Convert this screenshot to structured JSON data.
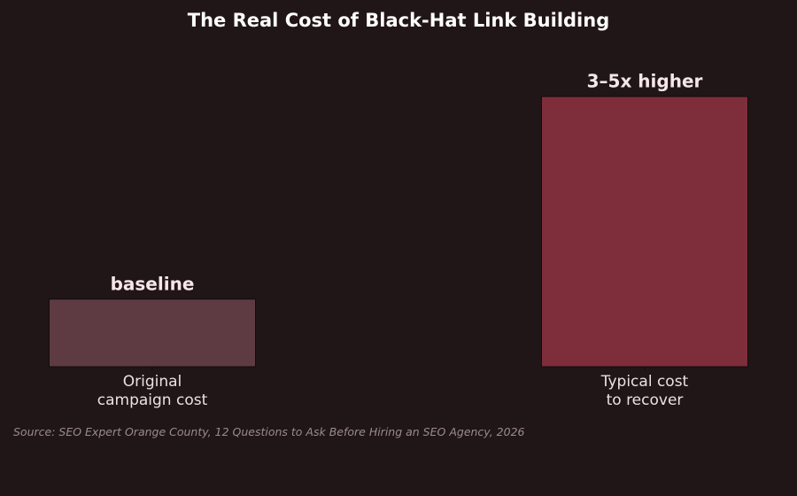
{
  "chart_data": {
    "type": "bar",
    "title": "The Real Cost of Black-Hat Link Building",
    "categories": [
      "Original\ncampaign cost",
      "Typical cost\nto recover"
    ],
    "values": [
      1,
      4
    ],
    "value_labels": [
      "baseline",
      "3–5x higher"
    ],
    "colors": [
      "#5e3b42",
      "#7d2e3a"
    ],
    "ylim": [
      0,
      4.4
    ],
    "source": "Source: SEO Expert Orange County, 12 Questions to Ask Before Hiring an SEO Agency, 2026"
  }
}
